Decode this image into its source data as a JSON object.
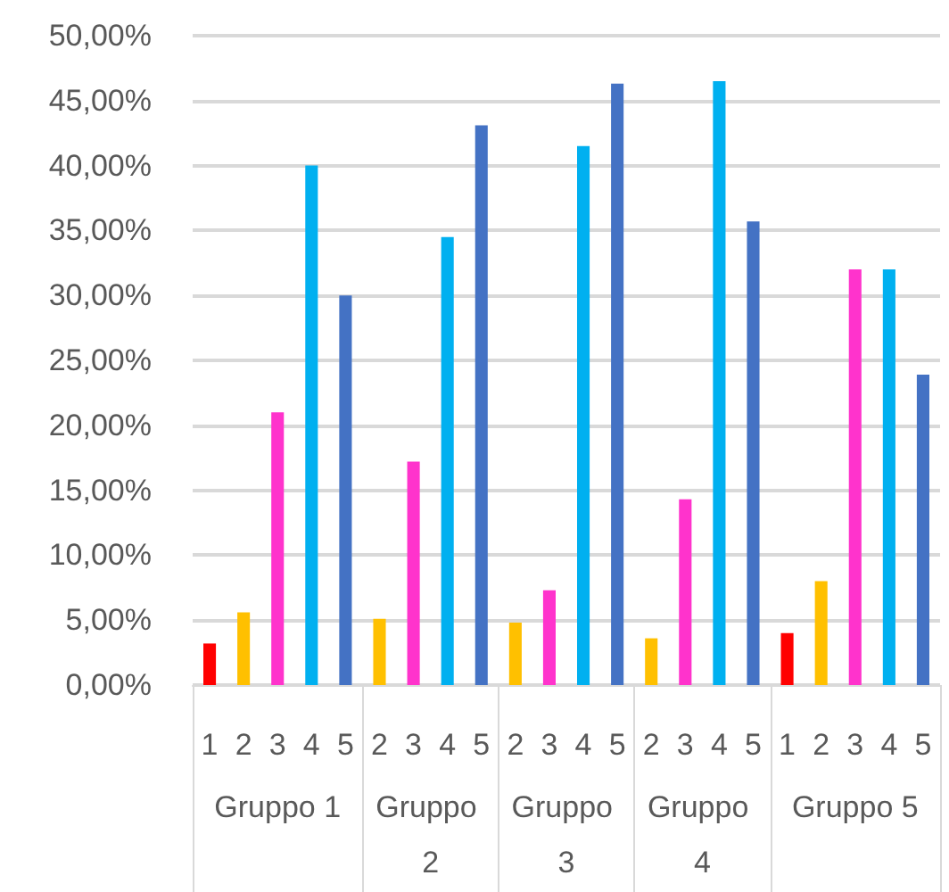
{
  "chart_data": {
    "type": "bar",
    "categories": [
      "1",
      "2",
      "3",
      "4",
      "5",
      "2",
      "3",
      "4",
      "5",
      "2",
      "3",
      "4",
      "5",
      "2",
      "3",
      "4",
      "5",
      "1",
      "2",
      "3",
      "4",
      "5"
    ],
    "values": [
      3.2,
      5.6,
      21.0,
      40.0,
      30.0,
      5.1,
      17.2,
      34.5,
      43.1,
      4.8,
      7.3,
      41.5,
      46.3,
      3.6,
      14.3,
      46.5,
      35.7,
      4.0,
      8.0,
      32.0,
      32.0,
      23.9
    ],
    "colors": [
      "#ff0000",
      "#ffc000",
      "#ff33cc",
      "#00b0f0",
      "#4472c4",
      "#ffc000",
      "#ff33cc",
      "#00b0f0",
      "#4472c4",
      "#ffc000",
      "#ff33cc",
      "#00b0f0",
      "#4472c4",
      "#ffc000",
      "#ff33cc",
      "#00b0f0",
      "#4472c4",
      "#ff0000",
      "#ffc000",
      "#ff33cc",
      "#00b0f0",
      "#4472c4"
    ],
    "ylim": [
      0,
      50
    ],
    "yticks": [
      {
        "value": 0,
        "label": "0,00%"
      },
      {
        "value": 5,
        "label": "5,00%"
      },
      {
        "value": 10,
        "label": "10,00%"
      },
      {
        "value": 15,
        "label": "15,00%"
      },
      {
        "value": 20,
        "label": "20,00%"
      },
      {
        "value": 25,
        "label": "25,00%"
      },
      {
        "value": 30,
        "label": "30,00%"
      },
      {
        "value": 35,
        "label": "35,00%"
      },
      {
        "value": 40,
        "label": "40,00%"
      },
      {
        "value": 45,
        "label": "45,00%"
      },
      {
        "value": 50,
        "label": "50,00%"
      }
    ],
    "grid": "y",
    "annotations": [
      "Gruppo 1",
      "Gruppo 2",
      "Gruppo 3",
      "Gruppo 4",
      "Gruppo 5"
    ]
  }
}
